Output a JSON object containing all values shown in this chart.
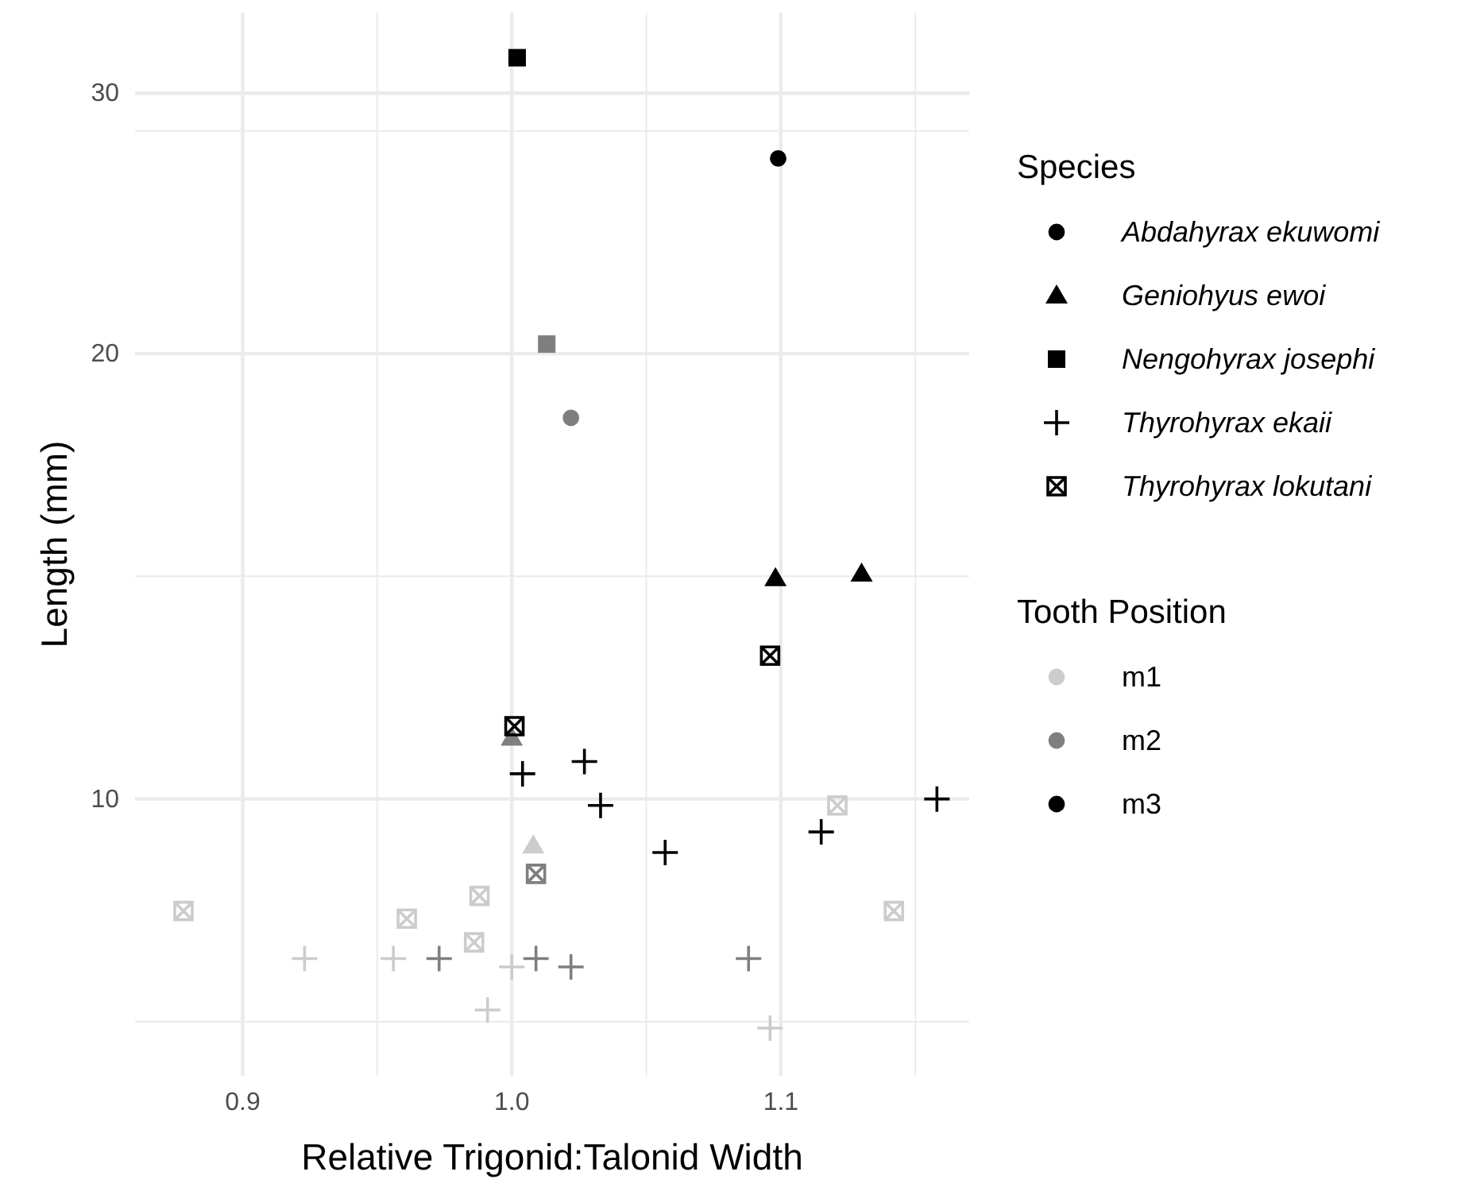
{
  "chart_data": {
    "type": "scatter",
    "xlabel": "Relative Trigonid:Talonid Width",
    "ylabel": "Length (mm)",
    "legend_title": [
      "Species",
      "Tooth Position"
    ],
    "xlim": [
      0.86,
      1.17
    ],
    "xticks": [
      {
        "value": 0.9,
        "label": "0.9"
      },
      {
        "value": 1.0,
        "label": "1.0"
      },
      {
        "value": 1.1,
        "label": "1.1"
      }
    ],
    "ylim": [
      6.5,
      34
    ],
    "yticks": [
      10,
      20,
      30
    ],
    "log": "y",
    "grid": true,
    "legend": "right",
    "series": [
      {
        "name": "Abdahyrax ekuwomi",
        "marker": "circle",
        "x": [
          1.099,
          1.022
        ],
        "values": [
          27.1,
          18.1
        ],
        "colors": [
          "#000000",
          "#7f7f7f"
        ]
      },
      {
        "name": "Geniohyus ewoi",
        "marker": "triangle",
        "x": [
          1.098,
          1.13,
          1.0,
          1.008
        ],
        "values": [
          14.1,
          14.2,
          11.0,
          9.3
        ],
        "colors": [
          "#000000",
          "#000000",
          "#7f7f7f",
          "#cccccc"
        ]
      },
      {
        "name": "Nengohyrax josephi",
        "marker": "square",
        "x": [
          1.002,
          1.013
        ],
        "values": [
          31.7,
          20.3
        ],
        "colors": [
          "#000000",
          "#7f7f7f"
        ]
      },
      {
        "name": "Thyrohyrax ekaii",
        "marker": "plus",
        "x": [
          1.004,
          1.027,
          1.033,
          1.057,
          1.115,
          1.158,
          0.973,
          1.009,
          1.022,
          1.088,
          0.923,
          0.956,
          1.0,
          0.991,
          1.096
        ],
        "values": [
          10.4,
          10.6,
          9.9,
          9.2,
          9.5,
          10.0,
          7.8,
          7.8,
          7.7,
          7.8,
          7.8,
          7.8,
          7.7,
          7.2,
          7.0
        ],
        "colors": [
          "#000000",
          "#000000",
          "#000000",
          "#000000",
          "#000000",
          "#000000",
          "#7f7f7f",
          "#7f7f7f",
          "#7f7f7f",
          "#7f7f7f",
          "#cccccc",
          "#cccccc",
          "#cccccc",
          "#cccccc",
          "#cccccc"
        ]
      },
      {
        "name": "Thyrohyrax lokutani",
        "marker": "cross",
        "x": [
          1.096,
          1.001,
          1.009,
          1.121,
          0.878,
          0.961,
          0.988,
          0.986,
          1.142
        ],
        "values": [
          12.5,
          11.2,
          8.9,
          9.9,
          8.4,
          8.3,
          8.6,
          8.0,
          8.4
        ],
        "colors": [
          "#000000",
          "#000000",
          "#7f7f7f",
          "#cccccc",
          "#cccccc",
          "#cccccc",
          "#cccccc",
          "#cccccc",
          "#cccccc"
        ]
      },
      {
        "name": "m1",
        "marker": "circle",
        "color": "#cccccc"
      },
      {
        "name": "m2",
        "marker": "circle",
        "color": "#7f7f7f"
      },
      {
        "name": "m3",
        "marker": "circle",
        "color": "#000000"
      }
    ]
  }
}
